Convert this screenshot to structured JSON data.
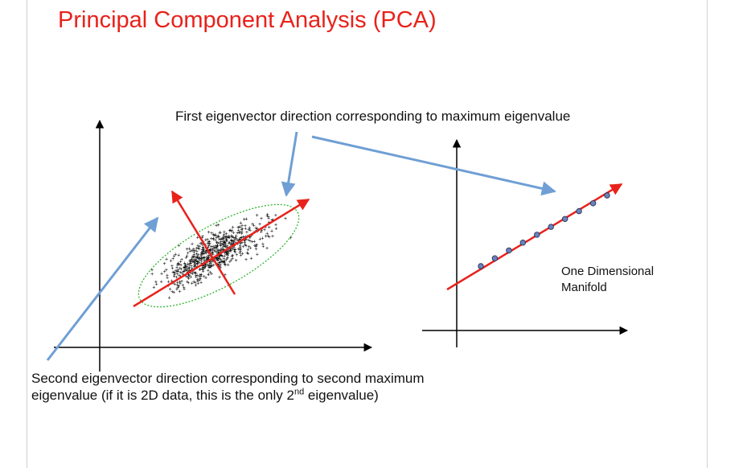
{
  "slide": {
    "title": "Principal Component Analysis (PCA)",
    "first_eigenvector_label": "First eigenvector direction corresponding to maximum eigenvalue",
    "second_eigenvector_label": {
      "line1": "Second eigenvector direction corresponding to second maximum",
      "line2_prefix": "eigenvalue (if it is 2D data, this is the only 2",
      "line2_sup": "nd",
      "line2_suffix": " eigenvalue)"
    },
    "manifold_label": {
      "line1": "One Dimensional",
      "line2": "Manifold"
    }
  },
  "colors": {
    "title": "#e8221b",
    "eigenvector": "#e8221b",
    "callout_arrow": "#6f9fd4",
    "scatter_points": "#000000",
    "ellipse": "#2fb52f",
    "manifold_points": "#6a82b8"
  }
}
